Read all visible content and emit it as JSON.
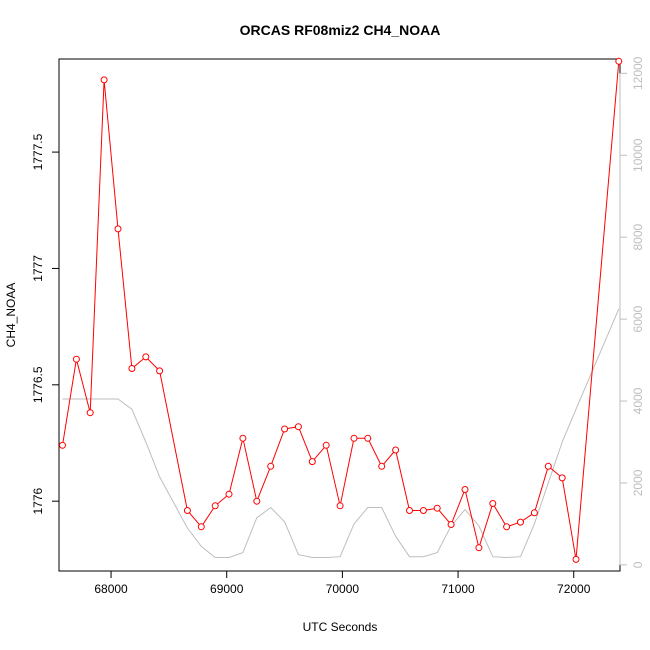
{
  "chart_data": {
    "type": "line",
    "title": "ORCAS RF08miz2 CH4_NOAA",
    "xlabel": "UTC Seconds",
    "ylabel": "CH4_NOAA",
    "xlim": [
      67550,
      72400
    ],
    "ylim": [
      1775.7,
      1777.9
    ],
    "y2lim": [
      -150,
      12350
    ],
    "x_ticks": [
      68000,
      69000,
      70000,
      71000,
      72000
    ],
    "y_ticks": [
      1776.0,
      1776.5,
      1777.0,
      1777.5
    ],
    "y2_ticks": [
      0,
      2000,
      4000,
      6000,
      8000,
      10000,
      12000
    ],
    "series": [
      {
        "axis": "left",
        "color": "#ff0000",
        "markers": "open-circle",
        "x": [
          67580,
          67700,
          67820,
          67940,
          68060,
          68180,
          68300,
          68420,
          68660,
          68780,
          68900,
          69020,
          69140,
          69260,
          69380,
          69500,
          69620,
          69740,
          69860,
          69980,
          70100,
          70220,
          70340,
          70460,
          70580,
          70700,
          70820,
          70940,
          71060,
          71180,
          71300,
          71420,
          71540,
          71660,
          71780,
          71900,
          72020,
          72390
        ],
        "values": [
          1776.24,
          1776.61,
          1776.38,
          1777.81,
          1777.17,
          1776.57,
          1776.62,
          1776.56,
          1775.96,
          1775.89,
          1775.98,
          1776.03,
          1776.27,
          1776.0,
          1776.15,
          1776.31,
          1776.32,
          1776.17,
          1776.24,
          1775.98,
          1776.27,
          1776.27,
          1776.15,
          1776.22,
          1775.96,
          1775.96,
          1775.97,
          1775.9,
          1776.05,
          1775.8,
          1775.99,
          1775.89,
          1775.91,
          1775.95,
          1776.15,
          1776.1,
          1775.75,
          1777.89
        ]
      },
      {
        "axis": "right",
        "color": "#bebebe",
        "x": [
          67580,
          67700,
          67820,
          67940,
          68060,
          68180,
          68300,
          68420,
          68660,
          68780,
          68900,
          69020,
          69140,
          69260,
          69380,
          69500,
          69620,
          69740,
          69860,
          69980,
          70100,
          70220,
          70340,
          70460,
          70580,
          70700,
          70820,
          70940,
          71060,
          71180,
          71300,
          71420,
          71540,
          71660,
          71780,
          71900,
          72020,
          72390
        ],
        "values": [
          4050,
          4050,
          4050,
          4050,
          4050,
          3800,
          3000,
          2150,
          900,
          450,
          180,
          180,
          300,
          1150,
          1400,
          1050,
          250,
          180,
          180,
          200,
          1000,
          1400,
          1400,
          700,
          200,
          200,
          300,
          950,
          1350,
          950,
          200,
          180,
          200,
          1000,
          2000,
          3000,
          3800,
          6250
        ]
      }
    ],
    "grid": false
  }
}
